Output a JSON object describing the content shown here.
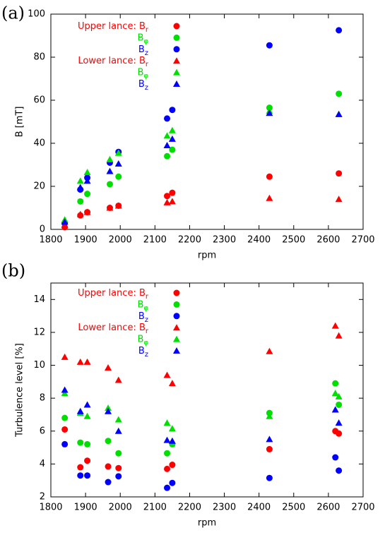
{
  "chart_data": [
    {
      "type": "scatter",
      "panel_label": "(a)",
      "x_label": "rpm",
      "y_label": "B [mT]",
      "x": [
        1840,
        1885,
        1905,
        1970,
        1995,
        2135,
        2150,
        2430,
        2630
      ],
      "xlim": [
        1800,
        2700
      ],
      "xticks": [
        1800,
        1900,
        2000,
        2100,
        2200,
        2300,
        2400,
        2500,
        2600,
        2700
      ],
      "ylim": [
        0,
        100
      ],
      "yticks": [
        0,
        20,
        40,
        60,
        80,
        100
      ],
      "series": [
        {
          "name": "Upper lance: B",
          "subscript": "r",
          "color": "#ff0000",
          "marker": "circle",
          "values": [
            1,
            6.5,
            8,
            10,
            11,
            15.5,
            17,
            24.5,
            26
          ]
        },
        {
          "name": "B",
          "subscript": "φ",
          "color": "#00e000",
          "marker": "circle",
          "values": [
            3,
            13,
            16.5,
            21,
            24.5,
            34,
            37,
            56.5,
            63
          ]
        },
        {
          "name": "B",
          "subscript": "z",
          "color": "#0000ff",
          "marker": "circle",
          "values": [
            3,
            18.5,
            24,
            31,
            36,
            51.5,
            55.5,
            85.5,
            92.5
          ]
        },
        {
          "name": "Lower lance: B",
          "subscript": "r",
          "color": "#ff0000",
          "marker": "triangle",
          "values": [
            2,
            7,
            8,
            10,
            11,
            12.5,
            13,
            14.5,
            14
          ]
        },
        {
          "name": "B",
          "subscript": "φ",
          "color": "#00e000",
          "marker": "triangle",
          "values": [
            4.5,
            22.5,
            26.5,
            32.5,
            35.5,
            43.5,
            46,
            55,
            53.5
          ]
        },
        {
          "name": "B",
          "subscript": "z",
          "color": "#0000ff",
          "marker": "triangle",
          "values": [
            3.5,
            19.5,
            22.5,
            27,
            30.5,
            39,
            42,
            54,
            53.5
          ]
        }
      ]
    },
    {
      "type": "scatter",
      "panel_label": "(b)",
      "x_label": "rpm",
      "y_label": "Turbulence level [%]",
      "x": [
        1840,
        1885,
        1905,
        1965,
        1995,
        2135,
        2150,
        2430,
        2620,
        2630
      ],
      "xlim": [
        1800,
        2700
      ],
      "xticks": [
        1800,
        1900,
        2000,
        2100,
        2200,
        2300,
        2400,
        2500,
        2600,
        2700
      ],
      "ylim": [
        2,
        15
      ],
      "yticks": [
        2,
        4,
        6,
        8,
        10,
        12,
        14
      ],
      "series": [
        {
          "name": "Upper lance: B",
          "subscript": "r",
          "color": "#ff0000",
          "marker": "circle",
          "values": [
            6.1,
            3.8,
            4.2,
            3.85,
            3.75,
            3.7,
            3.95,
            4.9,
            6.0,
            5.85
          ]
        },
        {
          "name": "B",
          "subscript": "φ",
          "color": "#00e000",
          "marker": "circle",
          "values": [
            6.8,
            5.3,
            5.2,
            5.4,
            4.65,
            4.65,
            5.2,
            7.1,
            8.9,
            7.6
          ]
        },
        {
          "name": "B",
          "subscript": "z",
          "color": "#0000ff",
          "marker": "circle",
          "values": [
            5.2,
            3.3,
            3.3,
            2.9,
            3.25,
            2.55,
            2.85,
            3.15,
            4.4,
            3.6
          ]
        },
        {
          "name": "Lower lance: B",
          "subscript": "r",
          "color": "#ff0000",
          "marker": "triangle",
          "values": [
            10.5,
            10.2,
            10.2,
            9.85,
            9.1,
            9.4,
            8.9,
            10.85,
            12.4,
            11.8
          ]
        },
        {
          "name": "B",
          "subscript": "φ",
          "color": "#00e000",
          "marker": "triangle",
          "values": [
            8.3,
            7.1,
            6.9,
            7.4,
            6.7,
            6.5,
            6.15,
            6.9,
            8.3,
            8.1
          ]
        },
        {
          "name": "B",
          "subscript": "z",
          "color": "#0000ff",
          "marker": "triangle",
          "values": [
            8.5,
            7.2,
            7.6,
            7.2,
            6.0,
            5.45,
            5.4,
            5.5,
            7.3,
            6.5
          ]
        }
      ]
    }
  ]
}
